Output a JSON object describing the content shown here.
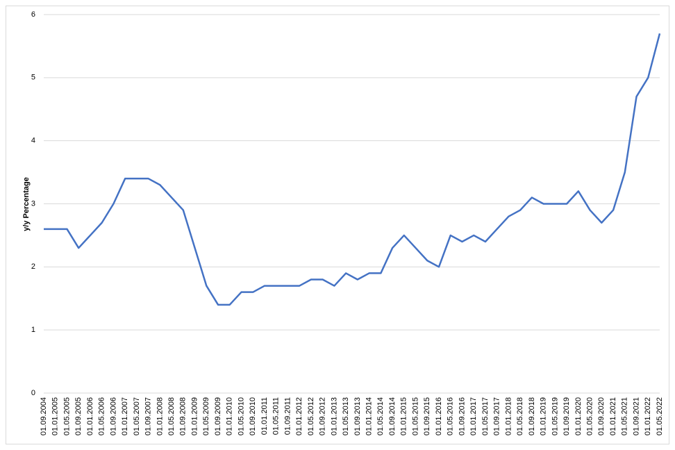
{
  "chart_data": {
    "type": "line",
    "y_label": "y/y Percentage",
    "categories": [
      "01.09.2004",
      "01.01.2005",
      "01.05.2005",
      "01.09.2005",
      "01.01.2006",
      "01.05.2006",
      "01.09.2006",
      "01.01.2007",
      "01.05.2007",
      "01.09.2007",
      "01.01.2008",
      "01.05.2008",
      "01.09.2008",
      "01.01.2009",
      "01.05.2009",
      "01.09.2009",
      "01.01.2010",
      "01.05.2010",
      "01.09.2010",
      "01.01.2011",
      "01.05.2011",
      "01.09.2011",
      "01.01.2012",
      "01.05.2012",
      "01.09.2012",
      "01.01.2013",
      "01.05.2013",
      "01.09.2013",
      "01.01.2014",
      "01.05.2014",
      "01.09.2014",
      "01.01.2015",
      "01.05.2015",
      "01.09.2015",
      "01.01.2016",
      "01.05.2016",
      "01.09.2016",
      "01.01.2017",
      "01.05.2017",
      "01.09.2017",
      "01.01.2018",
      "01.05.2018",
      "01.09.2018",
      "01.01.2019",
      "01.05.2019",
      "01.09.2019",
      "01.01.2020",
      "01.05.2020",
      "01.09.2020",
      "01.01.2021",
      "01.05.2021",
      "01.09.2021",
      "01.01.2022",
      "01.05.2022"
    ],
    "values": [
      2.6,
      2.6,
      2.6,
      2.3,
      2.5,
      2.7,
      3.0,
      3.4,
      3.4,
      3.4,
      3.3,
      3.1,
      2.9,
      2.3,
      1.7,
      1.4,
      1.4,
      1.6,
      1.6,
      1.7,
      1.7,
      1.7,
      1.7,
      1.8,
      1.8,
      1.7,
      1.9,
      1.8,
      1.9,
      1.9,
      2.3,
      2.5,
      2.3,
      2.1,
      2.0,
      2.5,
      2.4,
      2.5,
      2.4,
      2.6,
      2.8,
      2.9,
      3.1,
      3.0,
      3.0,
      3.0,
      3.2,
      2.9,
      2.7,
      2.9,
      3.5,
      4.7,
      5.0,
      5.7
    ],
    "color": "#4472c4",
    "ylim": [
      0,
      6
    ],
    "yticks": [
      0,
      1,
      2,
      3,
      4,
      5,
      6
    ],
    "grid": true
  }
}
